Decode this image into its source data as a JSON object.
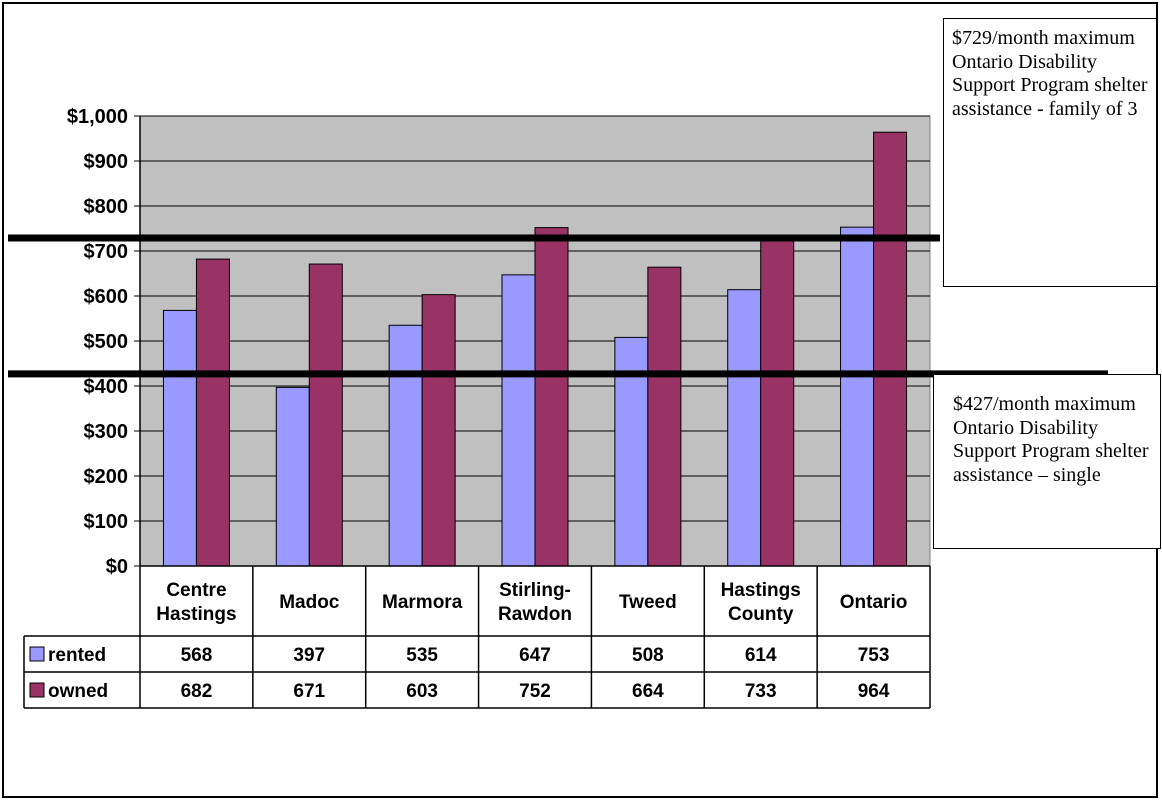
{
  "chart_data": {
    "type": "bar",
    "categories": [
      "Centre\nHastings",
      "Madoc",
      "Marmora",
      "Stirling-\nRawdon",
      "Tweed",
      "Hastings\nCounty",
      "Ontario"
    ],
    "series": [
      {
        "name": "rented",
        "values": [
          568,
          397,
          535,
          647,
          508,
          614,
          753
        ],
        "color": "#9999FF"
      },
      {
        "name": "owned",
        "values": [
          682,
          671,
          603,
          752,
          664,
          733,
          964
        ],
        "color": "#993366"
      }
    ],
    "ylim": [
      0,
      1000
    ],
    "yticks": [
      0,
      100,
      200,
      300,
      400,
      500,
      600,
      700,
      800,
      900,
      1000
    ],
    "ytick_labels": [
      "$0",
      "$100",
      "$200",
      "$300",
      "$400",
      "$500",
      "$600",
      "$700",
      "$800",
      "$900",
      "$1,000"
    ],
    "plot_background": "#C0C0C0",
    "grid": true,
    "legend": "data-table",
    "reference_lines": [
      {
        "value": 729,
        "note": "$729/month maximum Ontario Disability Support Program shelter assistance - family of 3"
      },
      {
        "value": 427,
        "note": "$427/month maximum Ontario Disability Support Program shelter assistance – single"
      }
    ]
  },
  "notes": {
    "family": "$729/month maximum Ontario Disability Support Program shelter assistance - family of 3",
    "single": "$427/month maximum Ontario Disability Support Program shelter assistance – single"
  }
}
